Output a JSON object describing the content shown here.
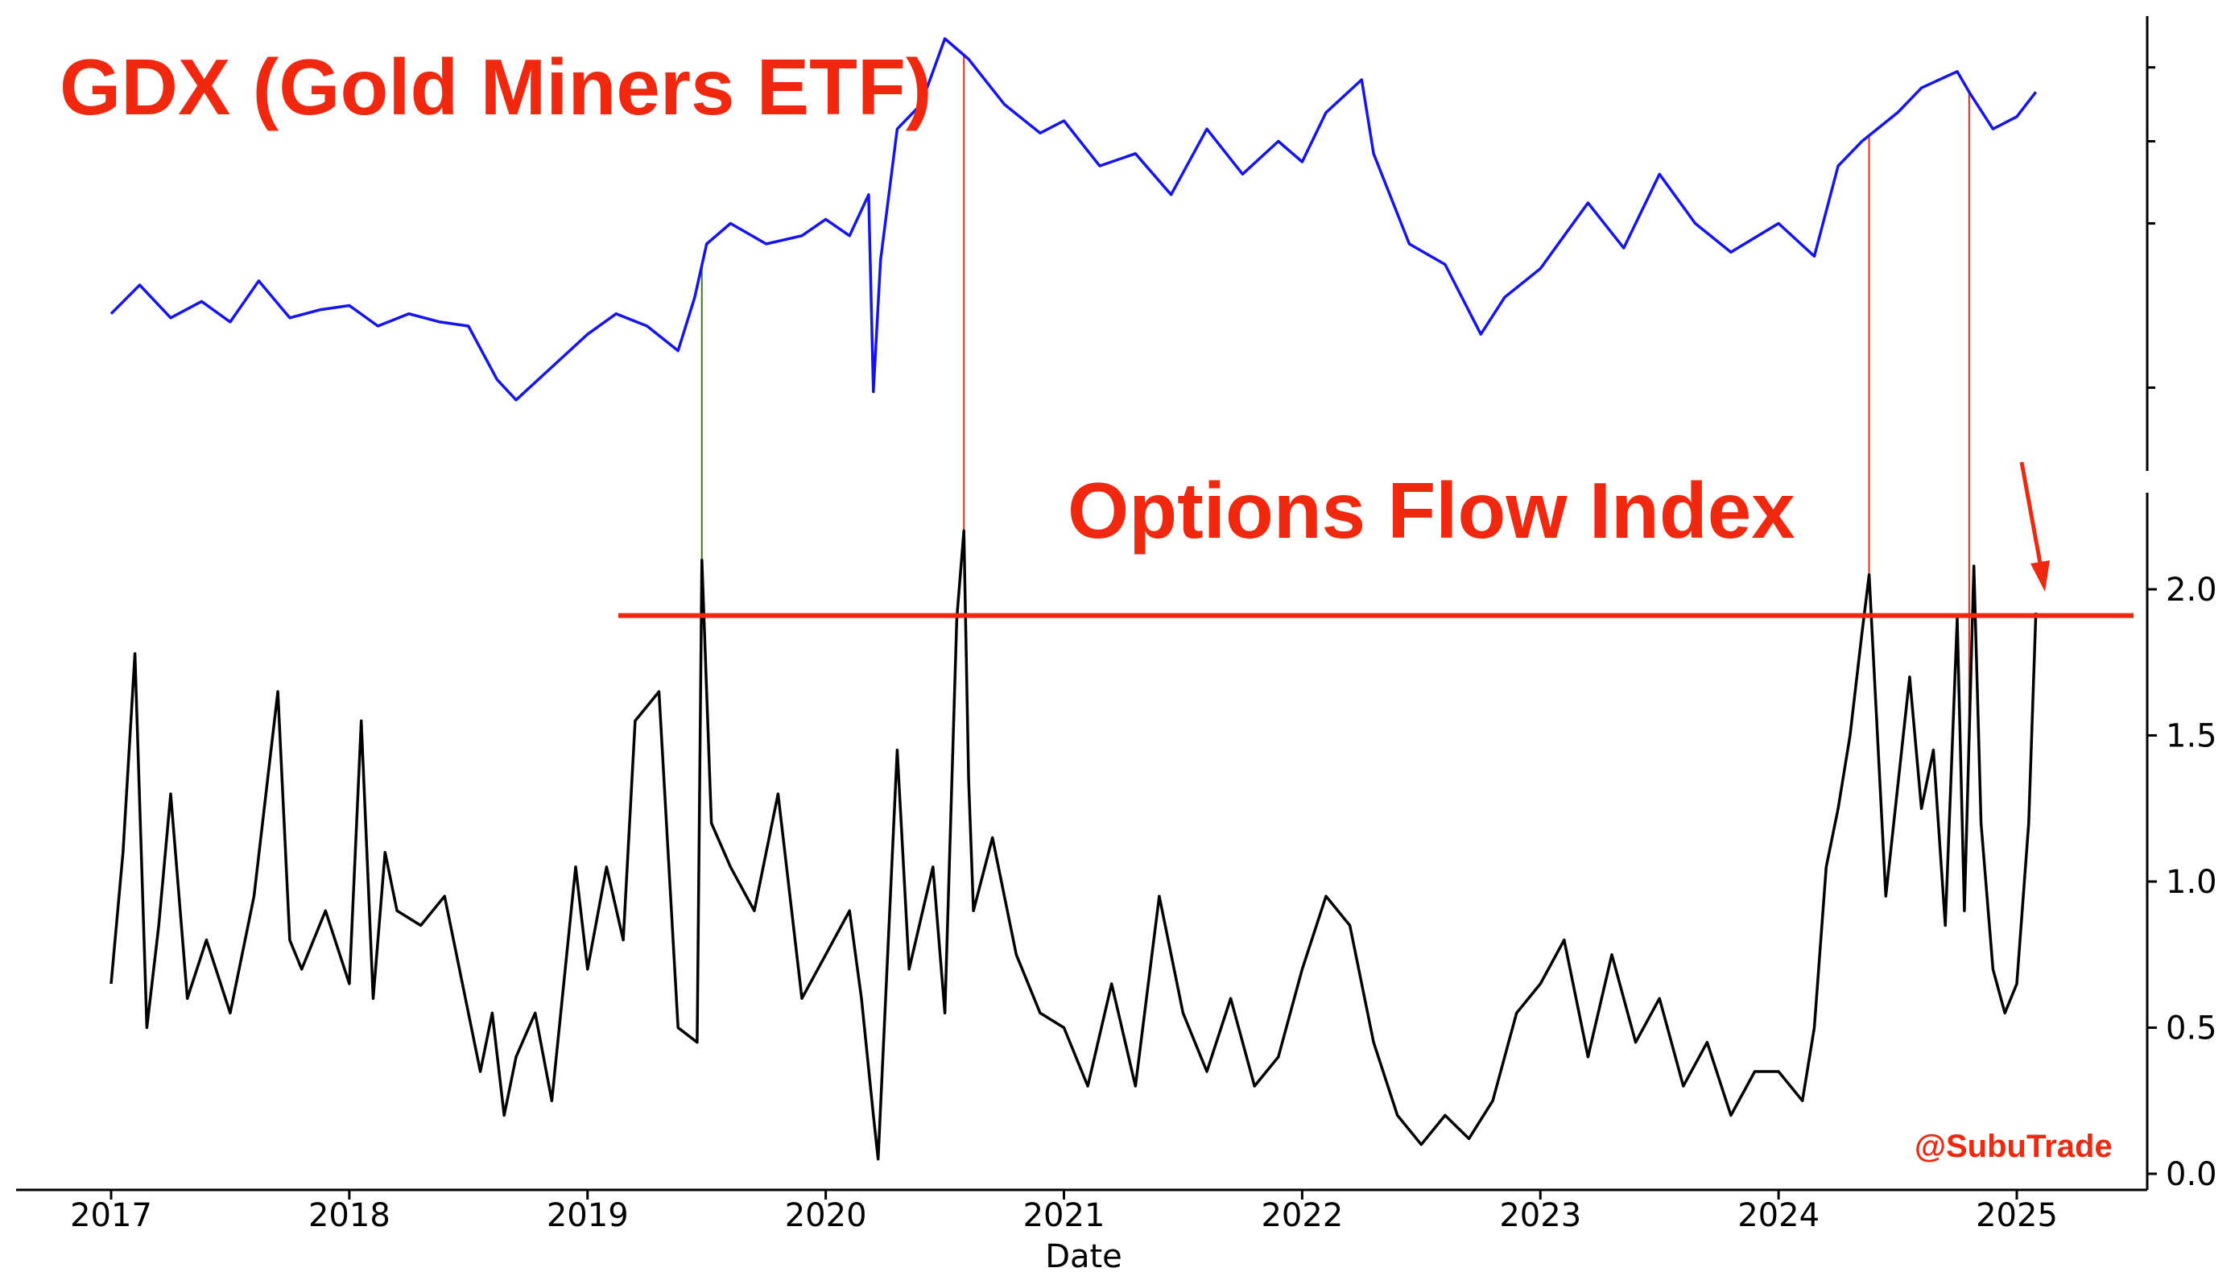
{
  "annotations": {
    "gdx_title": "GDX (Gold Miners ETF)",
    "ofi_title": "Options Flow Index",
    "watermark": "@SubuTrade"
  },
  "colors": {
    "gdx_line": "#1414f0",
    "ofi_line": "#000000",
    "accent_red": "#f0280f",
    "marker_green": "#3a7a1a"
  },
  "chart_data": [
    {
      "type": "line",
      "title": "GDX (Gold Miners ETF)",
      "xlabel": "Date",
      "ylabel": "",
      "y_ticks_labeled": false,
      "xlim": [
        2016.6,
        2025.5
      ],
      "ylim_normalized": [
        0,
        1
      ],
      "series": [
        {
          "color": "#1414f0",
          "x": [
            2017.0,
            2017.12,
            2017.25,
            2017.38,
            2017.5,
            2017.62,
            2017.75,
            2017.88,
            2018.0,
            2018.12,
            2018.25,
            2018.38,
            2018.5,
            2018.62,
            2018.7,
            2018.85,
            2019.0,
            2019.12,
            2019.25,
            2019.38,
            2019.45,
            2019.5,
            2019.6,
            2019.75,
            2019.9,
            2020.0,
            2020.1,
            2020.18,
            2020.2,
            2020.23,
            2020.3,
            2020.4,
            2020.5,
            2020.6,
            2020.75,
            2020.9,
            2021.0,
            2021.15,
            2021.3,
            2021.45,
            2021.6,
            2021.75,
            2021.9,
            2022.0,
            2022.1,
            2022.25,
            2022.3,
            2022.45,
            2022.6,
            2022.75,
            2022.85,
            2023.0,
            2023.1,
            2023.2,
            2023.35,
            2023.5,
            2023.65,
            2023.8,
            2024.0,
            2024.15,
            2024.25,
            2024.35,
            2024.5,
            2024.6,
            2024.75,
            2024.8,
            2024.9,
            2025.0,
            2025.08
          ],
          "y": [
            0.33,
            0.4,
            0.32,
            0.36,
            0.31,
            0.41,
            0.32,
            0.34,
            0.35,
            0.3,
            0.33,
            0.31,
            0.3,
            0.17,
            0.12,
            0.2,
            0.28,
            0.33,
            0.3,
            0.24,
            0.37,
            0.5,
            0.55,
            0.5,
            0.52,
            0.56,
            0.52,
            0.62,
            0.14,
            0.46,
            0.78,
            0.84,
            1.0,
            0.95,
            0.84,
            0.77,
            0.8,
            0.69,
            0.72,
            0.62,
            0.78,
            0.67,
            0.75,
            0.7,
            0.82,
            0.9,
            0.72,
            0.5,
            0.45,
            0.28,
            0.37,
            0.44,
            0.52,
            0.6,
            0.49,
            0.67,
            0.55,
            0.48,
            0.55,
            0.47,
            0.69,
            0.75,
            0.82,
            0.88,
            0.92,
            0.87,
            0.78,
            0.81,
            0.87
          ]
        }
      ]
    },
    {
      "type": "line",
      "title": "Options Flow Index",
      "xlabel": "Date",
      "ylabel": "",
      "xlim": [
        2016.6,
        2025.5
      ],
      "ylim": [
        -0.05,
        2.35
      ],
      "x_ticks": [
        "2017",
        "2018",
        "2019",
        "2020",
        "2021",
        "2022",
        "2023",
        "2024",
        "2025"
      ],
      "y_ticks": [
        "0.0",
        "0.5",
        "1.0",
        "1.5",
        "2.0"
      ],
      "threshold": 1.91,
      "series": [
        {
          "color": "#000000",
          "x": [
            2017.0,
            2017.05,
            2017.1,
            2017.15,
            2017.2,
            2017.25,
            2017.32,
            2017.4,
            2017.5,
            2017.6,
            2017.65,
            2017.7,
            2017.75,
            2017.8,
            2017.9,
            2018.0,
            2018.05,
            2018.1,
            2018.15,
            2018.2,
            2018.3,
            2018.4,
            2018.5,
            2018.55,
            2018.6,
            2018.65,
            2018.7,
            2018.78,
            2018.85,
            2018.95,
            2019.0,
            2019.08,
            2019.15,
            2019.2,
            2019.3,
            2019.38,
            2019.46,
            2019.48,
            2019.52,
            2019.6,
            2019.7,
            2019.8,
            2019.9,
            2020.0,
            2020.1,
            2020.15,
            2020.2,
            2020.22,
            2020.3,
            2020.35,
            2020.45,
            2020.5,
            2020.55,
            2020.58,
            2020.6,
            2020.62,
            2020.7,
            2020.8,
            2020.9,
            2021.0,
            2021.1,
            2021.2,
            2021.3,
            2021.4,
            2021.5,
            2021.6,
            2021.7,
            2021.8,
            2021.9,
            2022.0,
            2022.1,
            2022.2,
            2022.3,
            2022.4,
            2022.5,
            2022.6,
            2022.7,
            2022.8,
            2022.9,
            2023.0,
            2023.1,
            2023.2,
            2023.3,
            2023.4,
            2023.5,
            2023.6,
            2023.7,
            2023.8,
            2023.9,
            2024.0,
            2024.1,
            2024.15,
            2024.2,
            2024.25,
            2024.3,
            2024.35,
            2024.38,
            2024.45,
            2024.55,
            2024.6,
            2024.65,
            2024.7,
            2024.75,
            2024.78,
            2024.82,
            2024.85,
            2024.9,
            2024.95,
            2025.0,
            2025.05,
            2025.08
          ],
          "y": [
            0.65,
            1.1,
            1.78,
            0.5,
            0.85,
            1.3,
            0.6,
            0.8,
            0.55,
            0.95,
            1.3,
            1.65,
            0.8,
            0.7,
            0.9,
            0.65,
            1.55,
            0.6,
            1.1,
            0.9,
            0.85,
            0.95,
            0.55,
            0.35,
            0.55,
            0.2,
            0.4,
            0.55,
            0.25,
            1.05,
            0.7,
            1.05,
            0.8,
            1.55,
            1.65,
            0.5,
            0.45,
            2.1,
            1.2,
            1.05,
            0.9,
            1.3,
            0.6,
            0.75,
            0.9,
            0.6,
            0.2,
            0.05,
            1.45,
            0.7,
            1.05,
            0.55,
            1.9,
            2.2,
            1.35,
            0.9,
            1.15,
            0.75,
            0.55,
            0.5,
            0.3,
            0.65,
            0.3,
            0.95,
            0.55,
            0.35,
            0.6,
            0.3,
            0.4,
            0.7,
            0.95,
            0.85,
            0.45,
            0.2,
            0.1,
            0.2,
            0.12,
            0.25,
            0.55,
            0.65,
            0.8,
            0.4,
            0.75,
            0.45,
            0.6,
            0.3,
            0.45,
            0.2,
            0.35,
            0.35,
            0.25,
            0.5,
            1.05,
            1.25,
            1.5,
            1.85,
            2.05,
            0.95,
            1.7,
            1.25,
            1.45,
            0.85,
            1.9,
            0.9,
            2.08,
            1.2,
            0.7,
            0.55,
            0.65,
            1.2,
            1.92
          ]
        }
      ],
      "marker_x": [
        2019.48,
        2020.58,
        2024.38,
        2024.8
      ]
    }
  ]
}
